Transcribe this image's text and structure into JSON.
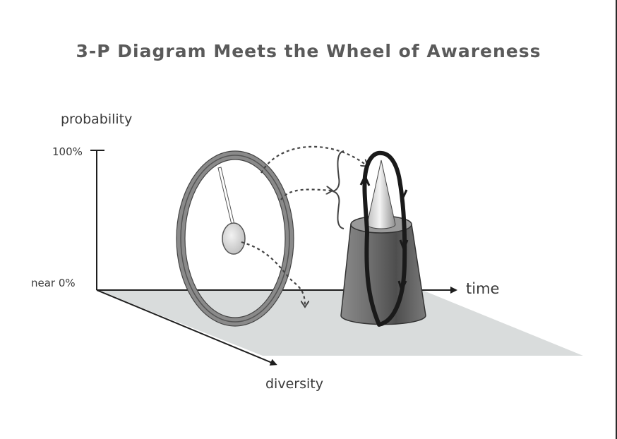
{
  "title": "3-P Diagram Meets the Wheel of Awareness",
  "axes": {
    "y_label": "probability",
    "y_top_tick": "100%",
    "y_bottom_tick": "near 0%",
    "x_label": "time",
    "z_label": "diversity"
  },
  "colors": {
    "title": "#5a5a5a",
    "plane": "#d9dcdc",
    "ink": "#1e1e1e",
    "rim": "#8c8c8c"
  }
}
